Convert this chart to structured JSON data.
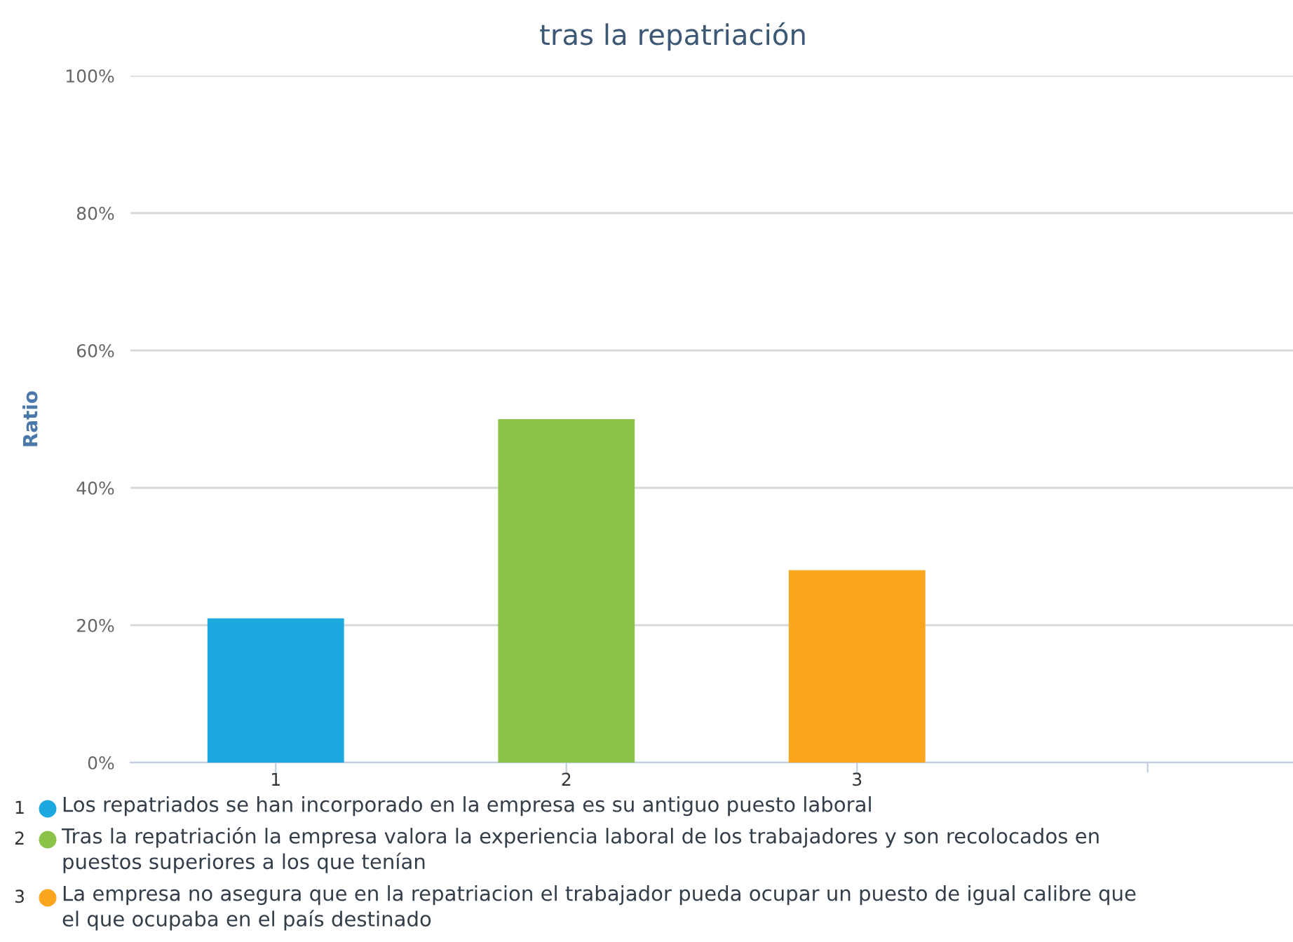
{
  "chart_data": {
    "type": "bar",
    "title": "tras la repatriación",
    "ylabel": "Ratio",
    "categories": [
      "1",
      "2",
      "3",
      null
    ],
    "series": [
      {
        "name": "Los repatriados se han incorporado en la empresa es su antiguo puesto laboral",
        "color": "#1ea8e0",
        "values": [
          21,
          null,
          null,
          null
        ]
      },
      {
        "name": "Tras la repatriación la empresa valora la experiencia laboral de los trabajadores y son recolocados en puestos superiores a los que tenían",
        "color": "#8bc34a",
        "values": [
          null,
          50,
          null,
          null
        ]
      },
      {
        "name": "La empresa no asegura que en la repatriacion el trabajador pueda ocupar un puesto de igual calibre que el que ocupaba en el país destinado",
        "color": "#f9a61e",
        "values": [
          null,
          null,
          28,
          null
        ]
      }
    ],
    "ylim": [
      0,
      100
    ],
    "yticks": [
      {
        "value": 0,
        "label": "0%"
      },
      {
        "value": 20,
        "label": "20%"
      },
      {
        "value": 40,
        "label": "40%"
      },
      {
        "value": 60,
        "label": "60%"
      },
      {
        "value": 80,
        "label": "80%"
      },
      {
        "value": 100,
        "label": "100%"
      }
    ],
    "grid": "y",
    "legend": "bottom left"
  }
}
